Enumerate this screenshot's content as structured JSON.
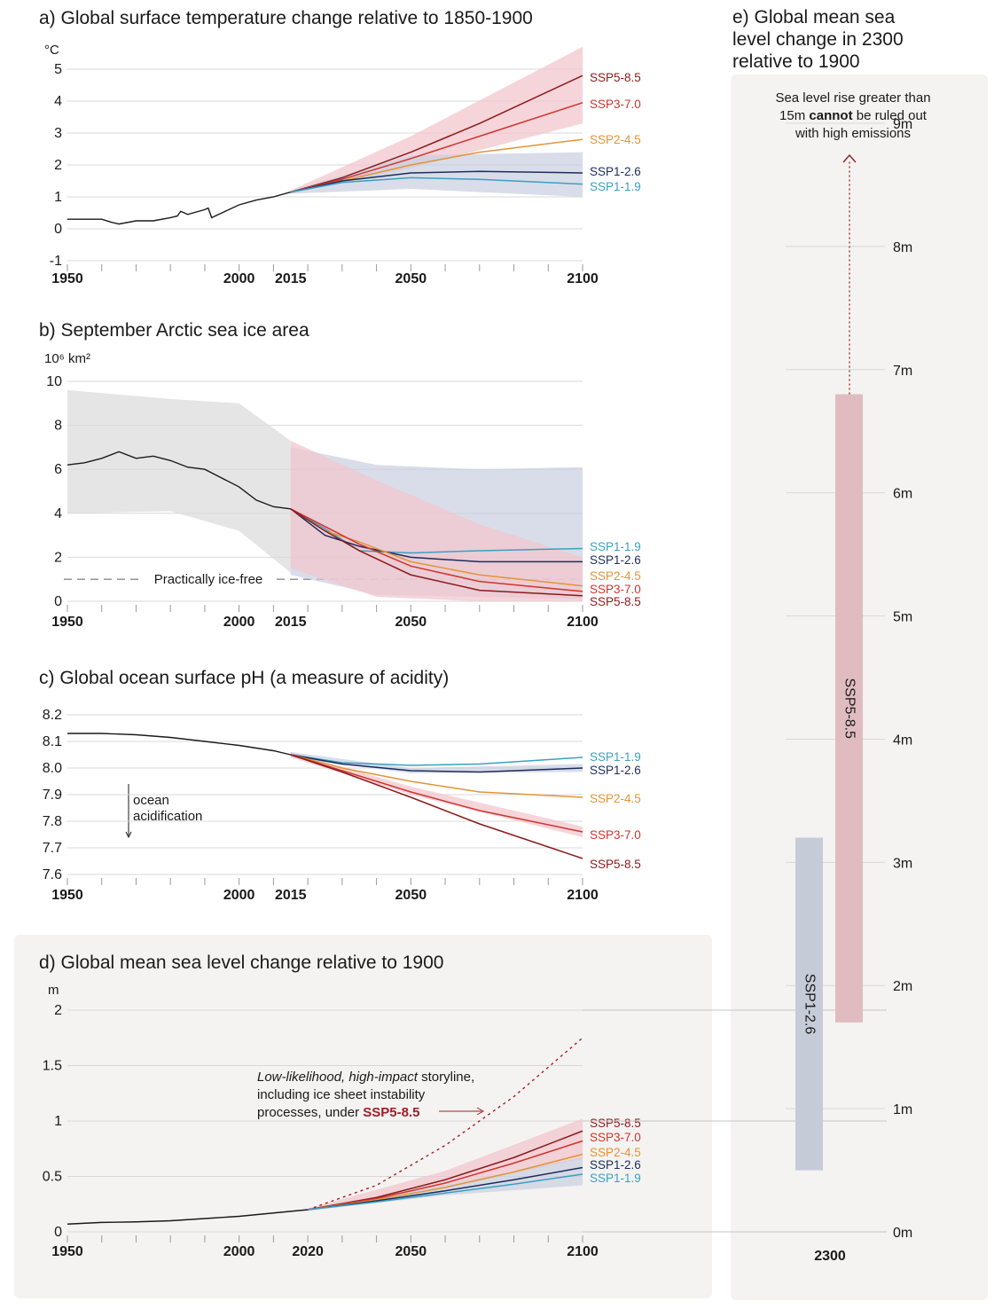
{
  "colors": {
    "hist": "#1a1a1a",
    "ssp119": "#3aa0c2",
    "ssp126": "#1c2d5c",
    "ssp245": "#e39436",
    "ssp370": "#d0342c",
    "ssp585": "#8c1a1a",
    "band_high": "#f2c6cd",
    "band_low": "#c9cfe0",
    "band_hist": "#dcdcdc",
    "panel_bg": "#f4f3f1",
    "grid": "#d8d8d8"
  },
  "chart_data": [
    {
      "id": "a",
      "type": "line",
      "title": "a) Global surface temperature change relative to 1850-1900",
      "ylabel": "°C",
      "ylim": [
        -1,
        5
      ],
      "xlim": [
        1950,
        2100
      ],
      "yticks": [
        "-1",
        "0",
        "1",
        "2",
        "3",
        "4",
        "5"
      ],
      "xticks": [
        "1950",
        "2000",
        "2015",
        "2050",
        "2100"
      ],
      "historical": {
        "x": [
          1950,
          1955,
          1960,
          1963,
          1965,
          1970,
          1975,
          1980,
          1982,
          1983,
          1985,
          1990,
          1991,
          1992,
          1995,
          2000,
          2005,
          2010,
          2015
        ],
        "y": [
          0.3,
          0.3,
          0.3,
          0.2,
          0.15,
          0.25,
          0.25,
          0.35,
          0.4,
          0.55,
          0.45,
          0.6,
          0.65,
          0.35,
          0.5,
          0.75,
          0.9,
          1.0,
          1.15
        ]
      },
      "series": [
        {
          "name": "SSP5-8.5",
          "x": [
            2015,
            2030,
            2050,
            2070,
            2100
          ],
          "y": [
            1.15,
            1.6,
            2.4,
            3.3,
            4.8
          ]
        },
        {
          "name": "SSP3-7.0",
          "x": [
            2015,
            2030,
            2050,
            2070,
            2100
          ],
          "y": [
            1.15,
            1.55,
            2.2,
            2.9,
            3.95
          ]
        },
        {
          "name": "SSP2-4.5",
          "x": [
            2015,
            2030,
            2050,
            2070,
            2100
          ],
          "y": [
            1.15,
            1.5,
            2.0,
            2.4,
            2.8
          ]
        },
        {
          "name": "SSP1-2.6",
          "x": [
            2015,
            2030,
            2050,
            2070,
            2100
          ],
          "y": [
            1.15,
            1.5,
            1.75,
            1.8,
            1.75
          ]
        },
        {
          "name": "SSP1-1.9",
          "x": [
            2015,
            2030,
            2050,
            2070,
            2100
          ],
          "y": [
            1.15,
            1.45,
            1.6,
            1.55,
            1.4
          ]
        }
      ],
      "bands": [
        {
          "of": "SSP5-8.5",
          "x": [
            2015,
            2050,
            2100
          ],
          "lo": [
            1.1,
            1.9,
            3.3
          ],
          "hi": [
            1.2,
            2.9,
            5.7
          ]
        },
        {
          "of": "SSP1-2.6",
          "x": [
            2015,
            2050,
            2100
          ],
          "lo": [
            1.1,
            1.25,
            1.0
          ],
          "hi": [
            1.2,
            2.3,
            2.4
          ]
        }
      ]
    },
    {
      "id": "b",
      "type": "line",
      "title": "b) September Arctic sea ice area",
      "ylabel": "10⁶ km²",
      "ylim": [
        0,
        10
      ],
      "xlim": [
        1950,
        2100
      ],
      "yticks": [
        "0",
        "2",
        "4",
        "6",
        "8",
        "10"
      ],
      "xticks": [
        "1950",
        "2000",
        "2015",
        "2050",
        "2100"
      ],
      "threshold": {
        "y": 1,
        "label": "Practically ice-free"
      },
      "historical": {
        "x": [
          1950,
          1955,
          1960,
          1965,
          1970,
          1975,
          1980,
          1985,
          1990,
          1995,
          2000,
          2005,
          2010,
          2015
        ],
        "y": [
          6.2,
          6.3,
          6.5,
          6.8,
          6.5,
          6.6,
          6.4,
          6.1,
          6.0,
          5.6,
          5.2,
          4.6,
          4.3,
          4.2
        ]
      },
      "series": [
        {
          "name": "SSP1-1.9",
          "x": [
            2015,
            2025,
            2035,
            2050,
            2070,
            2100
          ],
          "y": [
            4.2,
            3.3,
            2.3,
            2.2,
            2.3,
            2.4
          ]
        },
        {
          "name": "SSP1-2.6",
          "x": [
            2015,
            2025,
            2035,
            2050,
            2070,
            2100
          ],
          "y": [
            4.2,
            3.0,
            2.5,
            2.0,
            1.8,
            1.8
          ]
        },
        {
          "name": "SSP2-4.5",
          "x": [
            2015,
            2025,
            2035,
            2050,
            2070,
            2100
          ],
          "y": [
            4.2,
            3.2,
            2.7,
            1.8,
            1.2,
            0.7
          ]
        },
        {
          "name": "SSP3-7.0",
          "x": [
            2015,
            2025,
            2035,
            2050,
            2070,
            2100
          ],
          "y": [
            4.2,
            3.4,
            2.6,
            1.6,
            0.9,
            0.45
          ]
        },
        {
          "name": "SSP5-8.5",
          "x": [
            2015,
            2025,
            2035,
            2050,
            2070,
            2100
          ],
          "y": [
            4.2,
            3.2,
            2.3,
            1.2,
            0.5,
            0.25
          ]
        }
      ],
      "bands": [
        {
          "of": "historical",
          "x": [
            1950,
            1980,
            2000,
            2015
          ],
          "lo": [
            4.0,
            4.1,
            3.2,
            1.3
          ],
          "hi": [
            9.6,
            9.2,
            9.0,
            7.3
          ]
        },
        {
          "of": "SSP1-2.6",
          "x": [
            2015,
            2040,
            2070,
            2100
          ],
          "lo": [
            1.2,
            0.3,
            0.2,
            0.1
          ],
          "hi": [
            7.0,
            6.2,
            6.0,
            6.1
          ]
        },
        {
          "of": "SSP5-8.5",
          "x": [
            2015,
            2040,
            2070,
            2100
          ],
          "lo": [
            1.5,
            0.2,
            0.0,
            0.0
          ],
          "hi": [
            7.3,
            5.5,
            3.5,
            2.0
          ]
        }
      ]
    },
    {
      "id": "c",
      "type": "line",
      "title": "c) Global ocean surface pH (a measure of acidity)",
      "ylabel": "",
      "ylim": [
        7.6,
        8.2
      ],
      "xlim": [
        1950,
        2100
      ],
      "yticks": [
        "7.6",
        "7.7",
        "7.8",
        "7.9",
        "8.0",
        "8.1",
        "8.2"
      ],
      "xticks": [
        "1950",
        "2000",
        "2015",
        "2050",
        "2100"
      ],
      "annotation": [
        "ocean",
        "acidification"
      ],
      "historical": {
        "x": [
          1950,
          1960,
          1970,
          1980,
          1990,
          2000,
          2010,
          2015
        ],
        "y": [
          8.13,
          8.13,
          8.125,
          8.115,
          8.1,
          8.085,
          8.065,
          8.05
        ]
      },
      "series": [
        {
          "name": "SSP1-1.9",
          "x": [
            2015,
            2030,
            2050,
            2070,
            2100
          ],
          "y": [
            8.05,
            8.02,
            8.01,
            8.015,
            8.04
          ]
        },
        {
          "name": "SSP1-2.6",
          "x": [
            2015,
            2030,
            2050,
            2070,
            2100
          ],
          "y": [
            8.05,
            8.015,
            7.99,
            7.985,
            8.0
          ]
        },
        {
          "name": "SSP2-4.5",
          "x": [
            2015,
            2030,
            2050,
            2070,
            2100
          ],
          "y": [
            8.05,
            8.0,
            7.95,
            7.91,
            7.89
          ]
        },
        {
          "name": "SSP3-7.0",
          "x": [
            2015,
            2030,
            2050,
            2070,
            2100
          ],
          "y": [
            8.05,
            7.99,
            7.91,
            7.84,
            7.76
          ]
        },
        {
          "name": "SSP5-8.5",
          "x": [
            2015,
            2030,
            2050,
            2070,
            2100
          ],
          "y": [
            8.05,
            7.985,
            7.89,
            7.79,
            7.66
          ]
        }
      ],
      "bands": [
        {
          "of": "SSP3-7.0",
          "x": [
            2015,
            2050,
            2100
          ],
          "lo": [
            8.04,
            7.9,
            7.74
          ],
          "hi": [
            8.06,
            7.93,
            7.78
          ]
        },
        {
          "of": "SSP1-2.6",
          "x": [
            2015,
            2050,
            2100
          ],
          "lo": [
            8.04,
            7.98,
            7.985
          ],
          "hi": [
            8.06,
            8.0,
            8.015
          ]
        }
      ]
    },
    {
      "id": "d",
      "type": "line",
      "title": "d) Global mean sea level change relative to 1900",
      "ylabel": "m",
      "ylim": [
        0,
        2
      ],
      "xlim": [
        1950,
        2100
      ],
      "yticks": [
        "0",
        "0.5",
        "1",
        "1.5",
        "2"
      ],
      "xticks": [
        "1950",
        "2000",
        "2020",
        "2050",
        "2100"
      ],
      "storyline": {
        "line1_italic": "Low-likelihood, high-impact",
        "line1_rest": " storyline,",
        "line2": "including ice sheet instability",
        "line3": "processes, under ",
        "line3_bold": "SSP5-8.5",
        "x": [
          2020,
          2040,
          2060,
          2080,
          2100
        ],
        "y": [
          0.2,
          0.42,
          0.78,
          1.22,
          1.75
        ]
      },
      "historical": {
        "x": [
          1950,
          1960,
          1970,
          1980,
          1990,
          2000,
          2010,
          2020
        ],
        "y": [
          0.07,
          0.085,
          0.09,
          0.1,
          0.12,
          0.14,
          0.17,
          0.2
        ]
      },
      "series": [
        {
          "name": "SSP5-8.5",
          "x": [
            2020,
            2040,
            2060,
            2080,
            2100
          ],
          "y": [
            0.2,
            0.31,
            0.47,
            0.67,
            0.91
          ]
        },
        {
          "name": "SSP3-7.0",
          "x": [
            2020,
            2040,
            2060,
            2080,
            2100
          ],
          "y": [
            0.2,
            0.3,
            0.44,
            0.62,
            0.82
          ]
        },
        {
          "name": "SSP2-4.5",
          "x": [
            2020,
            2040,
            2060,
            2080,
            2100
          ],
          "y": [
            0.2,
            0.29,
            0.4,
            0.54,
            0.7
          ]
        },
        {
          "name": "SSP1-2.6",
          "x": [
            2020,
            2040,
            2060,
            2080,
            2100
          ],
          "y": [
            0.2,
            0.28,
            0.37,
            0.47,
            0.58
          ]
        },
        {
          "name": "SSP1-1.9",
          "x": [
            2020,
            2040,
            2060,
            2080,
            2100
          ],
          "y": [
            0.2,
            0.27,
            0.35,
            0.43,
            0.52
          ]
        }
      ],
      "bands": [
        {
          "of": "SSP5-8.5",
          "x": [
            2020,
            2060,
            2100
          ],
          "lo": [
            0.19,
            0.4,
            0.66
          ],
          "hi": [
            0.21,
            0.55,
            1.02
          ]
        },
        {
          "of": "SSP1-2.6",
          "x": [
            2020,
            2060,
            2100
          ],
          "lo": [
            0.19,
            0.33,
            0.42
          ],
          "hi": [
            0.21,
            0.42,
            0.67
          ]
        }
      ]
    },
    {
      "id": "e",
      "type": "bar",
      "title_lines": [
        "e) Global mean sea",
        "level change in 2300",
        "relative to 1900"
      ],
      "ylim": [
        0,
        9
      ],
      "yticks": [
        "0m",
        "1m",
        "2m",
        "3m",
        "4m",
        "5m",
        "6m",
        "7m",
        "8m",
        "9m"
      ],
      "xtick": "2300",
      "note_lines": [
        "Sea level rise greater than",
        "15m ",
        "cannot",
        " be ruled out",
        "with high emissions"
      ],
      "ranges": [
        {
          "name": "SSP1-2.6",
          "lo": 0.5,
          "hi": 3.2
        },
        {
          "name": "SSP5-8.5",
          "lo": 1.7,
          "hi": 6.8
        }
      ]
    }
  ]
}
